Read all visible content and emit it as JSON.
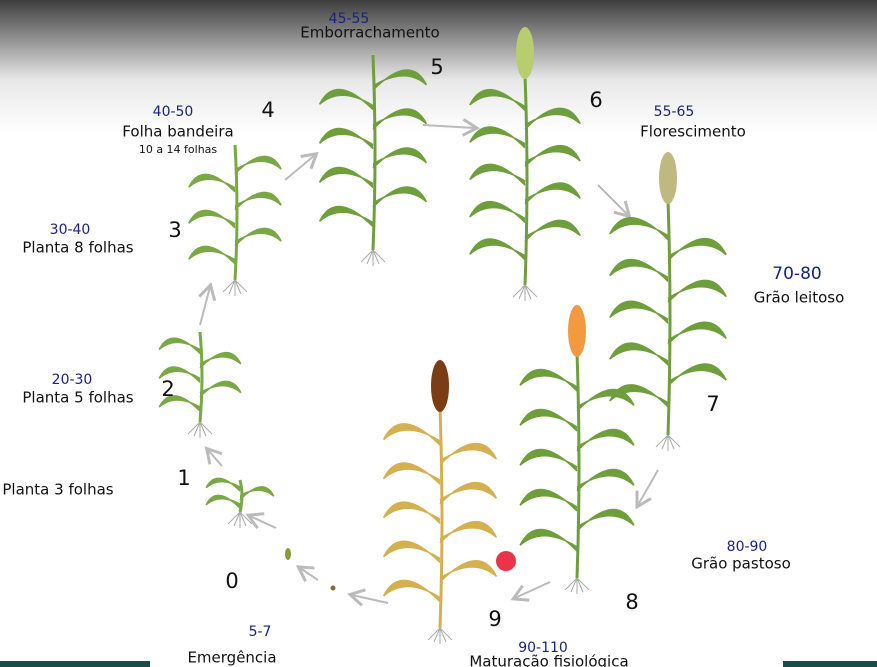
{
  "stages": [
    {
      "number": "0",
      "days": "5-7",
      "label": "Emergência"
    },
    {
      "number": "1",
      "label": "Planta 3 folhas"
    },
    {
      "number": "2",
      "days": "20-30",
      "label": "Planta 5 folhas"
    },
    {
      "number": "3",
      "days": "30-40",
      "label": "Planta 8 folhas"
    },
    {
      "number": "4",
      "days": "40-50",
      "label": "Folha bandeira",
      "sublabel": "10 a 14 folhas"
    },
    {
      "number": "5",
      "days": "45-55",
      "label": "Emborrachamento"
    },
    {
      "number": "6",
      "days": "55-65",
      "label": "Florescimento"
    },
    {
      "number": "7",
      "days": "70-80",
      "label": "Grão leitoso"
    },
    {
      "number": "8",
      "days": "80-90",
      "label": "Grão pastoso"
    },
    {
      "number": "9",
      "days": "90-110",
      "label": "Maturação fisiológica"
    }
  ]
}
